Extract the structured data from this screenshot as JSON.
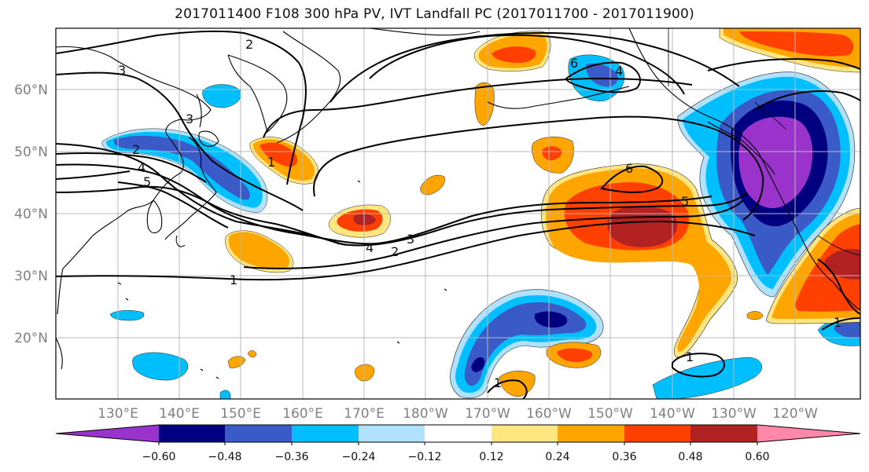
{
  "title": "2017011400 F108 300 hPa PV, IVT Landfall PC (2017011700 - 2017011900)",
  "map": {
    "lat_labels": [
      "60°N",
      "50°N",
      "40°N",
      "30°N",
      "20°N"
    ],
    "lon_labels": [
      "130°E",
      "140°E",
      "150°E",
      "160°E",
      "170°E",
      "180°W",
      "170°W",
      "160°W",
      "150°W",
      "140°W",
      "130°W",
      "120°W"
    ],
    "contour_labels": [
      "1",
      "2",
      "3",
      "3",
      "4",
      "4",
      "5",
      "5",
      "6",
      "6",
      "2",
      "1",
      "1",
      "3",
      "2",
      "4",
      "1",
      "1"
    ]
  },
  "colorbar": {
    "colors": [
      "#9933cc",
      "#000080",
      "#3a5bc7",
      "#00bfff",
      "#b0e2ff",
      "#ffffff",
      "#ffe680",
      "#ffa500",
      "#ff4000",
      "#b22222",
      "#ff88aa"
    ],
    "tick_labels": [
      "−0.60",
      "−0.48",
      "−0.36",
      "−0.24",
      "−0.12",
      "0.12",
      "0.24",
      "0.36",
      "0.48",
      "0.60"
    ]
  }
}
